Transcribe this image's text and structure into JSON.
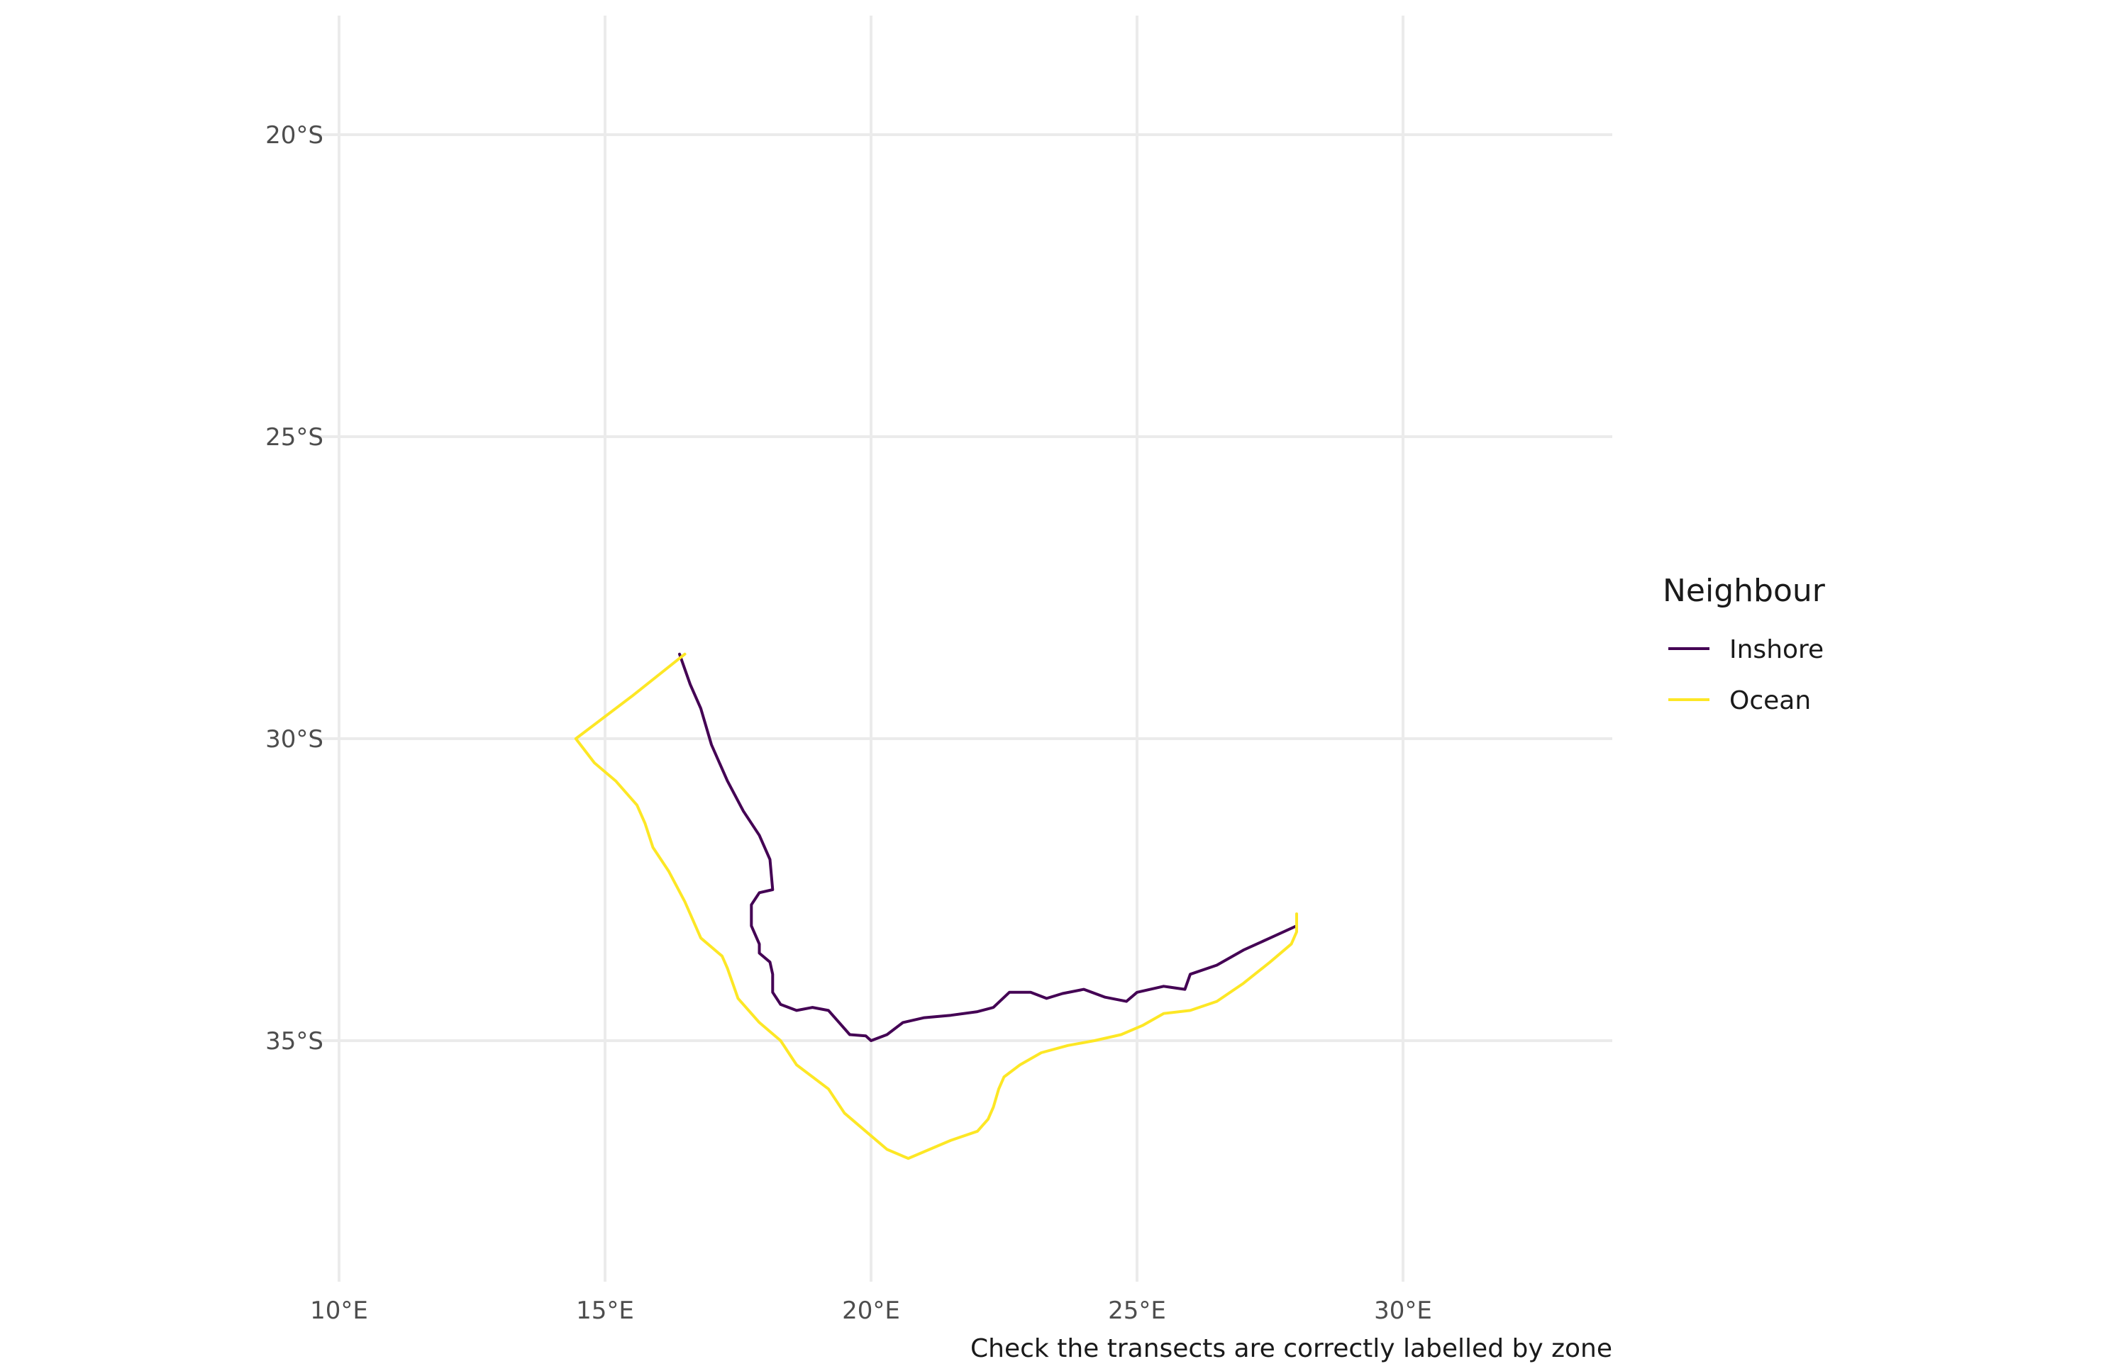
{
  "chart_data": {
    "type": "line",
    "title": "",
    "xlabel": "",
    "ylabel": "",
    "caption": "Check the transects are correctly labelled by zone",
    "xlim": [
      10,
      34
    ],
    "ylim": [
      -38.9,
      -18
    ],
    "x_ticks": [
      {
        "value": 10,
        "label": "10°E"
      },
      {
        "value": 15,
        "label": "15°E"
      },
      {
        "value": 20,
        "label": "20°E"
      },
      {
        "value": 25,
        "label": "25°E"
      },
      {
        "value": 30,
        "label": "30°E"
      }
    ],
    "y_ticks": [
      {
        "value": -20,
        "label": "20°S"
      },
      {
        "value": -25,
        "label": "25°S"
      },
      {
        "value": -30,
        "label": "30°S"
      },
      {
        "value": -35,
        "label": "35°S"
      }
    ],
    "grid": true,
    "legend": {
      "title": "Neighbour",
      "position": "right"
    },
    "series": [
      {
        "name": "Inshore",
        "color": "#440154",
        "points": [
          [
            16.4,
            -28.6
          ],
          [
            16.6,
            -29.1
          ],
          [
            16.8,
            -29.5
          ],
          [
            17.0,
            -30.1
          ],
          [
            17.3,
            -30.7
          ],
          [
            17.6,
            -31.2
          ],
          [
            17.9,
            -31.6
          ],
          [
            18.1,
            -32.0
          ],
          [
            18.15,
            -32.5
          ],
          [
            17.9,
            -32.55
          ],
          [
            17.75,
            -32.75
          ],
          [
            17.75,
            -33.1
          ],
          [
            17.9,
            -33.4
          ],
          [
            17.9,
            -33.55
          ],
          [
            18.1,
            -33.7
          ],
          [
            18.15,
            -33.9
          ],
          [
            18.15,
            -34.2
          ],
          [
            18.3,
            -34.4
          ],
          [
            18.6,
            -34.5
          ],
          [
            18.9,
            -34.45
          ],
          [
            19.2,
            -34.5
          ],
          [
            19.4,
            -34.7
          ],
          [
            19.6,
            -34.9
          ],
          [
            19.9,
            -34.92
          ],
          [
            20.0,
            -35.0
          ],
          [
            20.3,
            -34.9
          ],
          [
            20.6,
            -34.7
          ],
          [
            21.0,
            -34.62
          ],
          [
            21.5,
            -34.58
          ],
          [
            22.0,
            -34.52
          ],
          [
            22.3,
            -34.45
          ],
          [
            22.6,
            -34.2
          ],
          [
            23.0,
            -34.2
          ],
          [
            23.3,
            -34.3
          ],
          [
            23.6,
            -34.22
          ],
          [
            24.0,
            -34.15
          ],
          [
            24.4,
            -34.28
          ],
          [
            24.8,
            -34.35
          ],
          [
            25.0,
            -34.2
          ],
          [
            25.5,
            -34.1
          ],
          [
            25.9,
            -34.15
          ],
          [
            26.0,
            -33.9
          ],
          [
            26.5,
            -33.75
          ],
          [
            27.0,
            -33.5
          ],
          [
            27.5,
            -33.3
          ],
          [
            28.0,
            -33.1
          ]
        ]
      },
      {
        "name": "Ocean",
        "color": "#fde725",
        "points": [
          [
            16.5,
            -28.6
          ],
          [
            15.5,
            -29.3
          ],
          [
            14.45,
            -30.0
          ],
          [
            14.8,
            -30.4
          ],
          [
            15.2,
            -30.7
          ],
          [
            15.6,
            -31.1
          ],
          [
            15.75,
            -31.4
          ],
          [
            15.9,
            -31.8
          ],
          [
            16.2,
            -32.2
          ],
          [
            16.5,
            -32.7
          ],
          [
            16.8,
            -33.3
          ],
          [
            17.2,
            -33.6
          ],
          [
            17.3,
            -33.8
          ],
          [
            17.5,
            -34.3
          ],
          [
            17.9,
            -34.7
          ],
          [
            18.3,
            -35.0
          ],
          [
            18.6,
            -35.4
          ],
          [
            18.9,
            -35.6
          ],
          [
            19.2,
            -35.8
          ],
          [
            19.5,
            -36.2
          ],
          [
            19.9,
            -36.5
          ],
          [
            20.3,
            -36.8
          ],
          [
            20.7,
            -36.95
          ],
          [
            21.1,
            -36.8
          ],
          [
            21.5,
            -36.65
          ],
          [
            22.0,
            -36.5
          ],
          [
            22.2,
            -36.3
          ],
          [
            22.3,
            -36.1
          ],
          [
            22.4,
            -35.8
          ],
          [
            22.5,
            -35.6
          ],
          [
            22.8,
            -35.4
          ],
          [
            23.2,
            -35.2
          ],
          [
            23.7,
            -35.08
          ],
          [
            24.2,
            -35.0
          ],
          [
            24.7,
            -34.9
          ],
          [
            25.1,
            -34.75
          ],
          [
            25.5,
            -34.55
          ],
          [
            26.0,
            -34.5
          ],
          [
            26.5,
            -34.35
          ],
          [
            27.0,
            -34.05
          ],
          [
            27.5,
            -33.7
          ],
          [
            27.9,
            -33.4
          ],
          [
            28.0,
            -33.2
          ],
          [
            28.0,
            -32.9
          ]
        ]
      }
    ]
  }
}
